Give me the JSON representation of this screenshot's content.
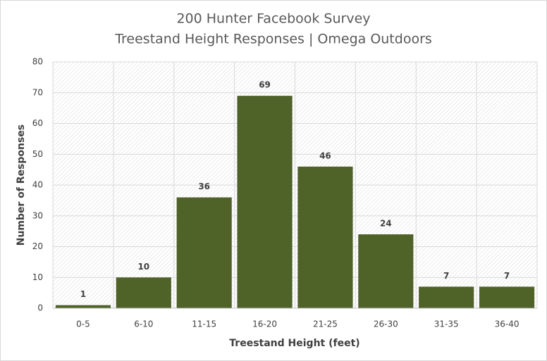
{
  "chart_data": {
    "type": "bar",
    "title": "200 Hunter Facebook Survey",
    "subtitle": "Treestand Height Responses | Omega Outdoors",
    "x_label": "Treestand Height (feet)",
    "y_label": "Number of Responses",
    "categories": [
      "0-5",
      "6-10",
      "11-15",
      "16-20",
      "21-25",
      "26-30",
      "31-35",
      "36-40"
    ],
    "values": [
      1,
      10,
      36,
      69,
      46,
      24,
      7,
      7
    ],
    "color": "#4f6228",
    "ylim": [
      0,
      80
    ],
    "yticks": [
      0,
      10,
      20,
      30,
      40,
      50,
      60,
      70,
      80
    ],
    "grid": true
  }
}
